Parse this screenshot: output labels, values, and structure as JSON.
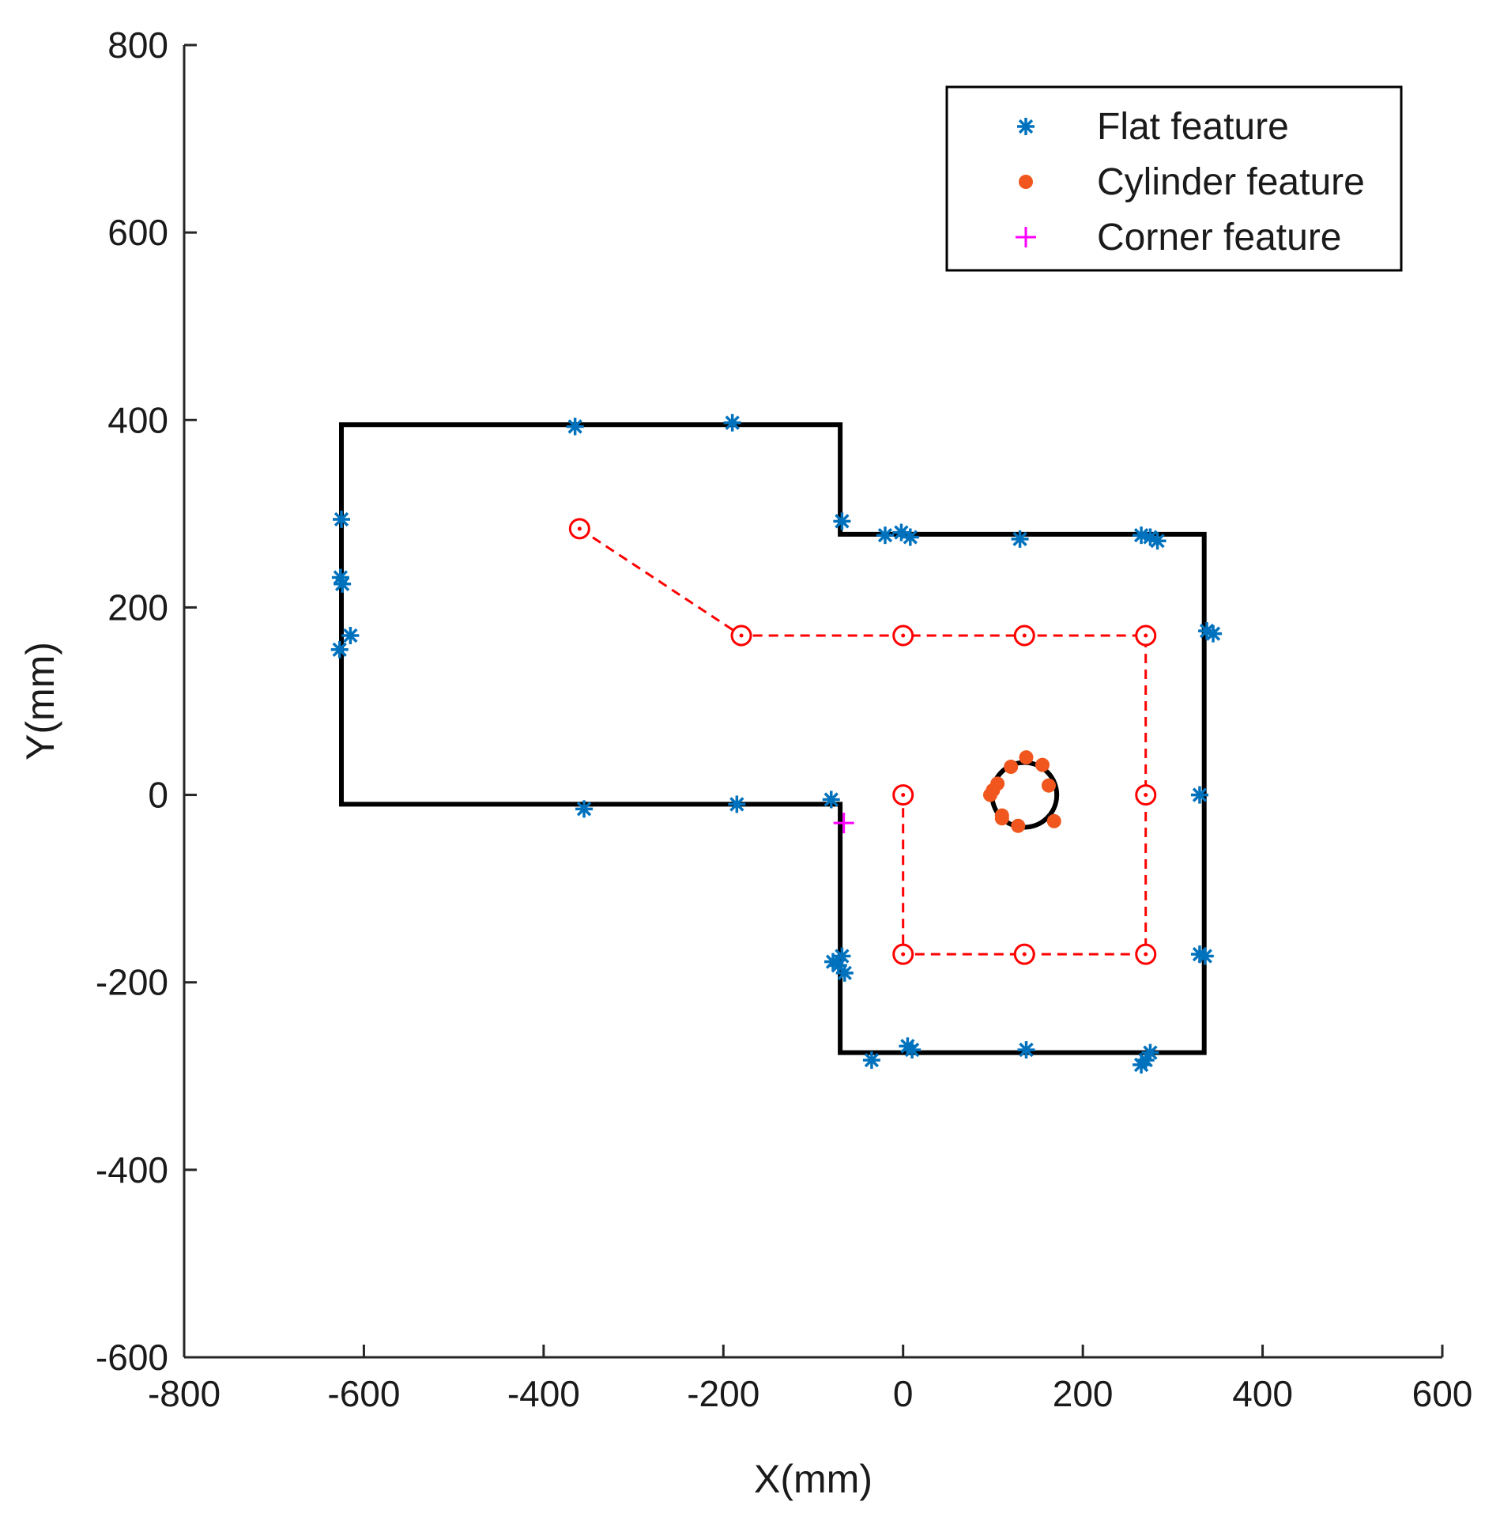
{
  "chart_data": {
    "type": "scatter",
    "xlabel": "X(mm)",
    "ylabel": "Y(mm)",
    "xlim": [
      -800,
      600
    ],
    "ylim": [
      -600,
      800
    ],
    "xticks": [
      -800,
      -600,
      -400,
      -200,
      0,
      200,
      400,
      600
    ],
    "yticks": [
      -600,
      -400,
      -200,
      0,
      200,
      400,
      600,
      800
    ],
    "xtick_labels": [
      "-800",
      "-600",
      "-400",
      "-200",
      "0",
      "200",
      "400",
      "600"
    ],
    "ytick_labels": [
      "-600",
      "-400",
      "-200",
      "0",
      "200",
      "400",
      "600",
      "800"
    ],
    "grid": false,
    "legend_position": "top-right",
    "colors": {
      "flat": "#0072bd",
      "cylinder": "#f0561d",
      "corner": "#ff00ff",
      "path": "#ff0000",
      "outline": "#000000"
    },
    "environment_outline": {
      "x": [
        -625,
        -70,
        -70,
        335,
        335,
        -70,
        -70,
        -625,
        -625
      ],
      "y": [
        395,
        395,
        278,
        278,
        -275,
        -275,
        -10,
        -10,
        395
      ]
    },
    "cylinder_circle": {
      "cx": 135,
      "cy": 0,
      "r": 36
    },
    "robot_path": {
      "x": [
        -360,
        -180,
        0,
        135,
        270,
        270,
        270,
        135,
        0,
        0
      ],
      "y": [
        284,
        170,
        170,
        170,
        170,
        0,
        -170,
        -170,
        -170,
        0
      ]
    },
    "series": [
      {
        "name": "Flat feature",
        "marker": "star",
        "x": [
          -365,
          -190,
          -625,
          -626,
          -624,
          -615,
          -627,
          -68,
          -20,
          -2,
          8,
          130,
          265,
          275,
          283,
          338,
          345,
          330,
          330,
          336,
          -355,
          -185,
          -80,
          -78,
          -68,
          -65,
          -72,
          5,
          10,
          -35,
          137,
          270,
          275,
          265
        ],
        "y": [
          393,
          397,
          294,
          232,
          225,
          170,
          155,
          292,
          277,
          280,
          275,
          273,
          277,
          275,
          271,
          175,
          172,
          0,
          -170,
          -172,
          -15,
          -10,
          -5,
          -178,
          -172,
          -190,
          -182,
          -268,
          -272,
          -283,
          -272,
          -283,
          -275,
          -288
        ]
      },
      {
        "name": "Cylinder feature",
        "marker": "dot",
        "x": [
          97,
          100,
          105,
          110,
          120,
          137,
          155,
          162,
          168,
          110,
          128
        ],
        "y": [
          0,
          5,
          12,
          -22,
          30,
          40,
          32,
          10,
          -28,
          -25,
          -33
        ]
      },
      {
        "name": "Corner feature",
        "marker": "plus",
        "x": [
          -66
        ],
        "y": [
          -30
        ]
      }
    ]
  }
}
